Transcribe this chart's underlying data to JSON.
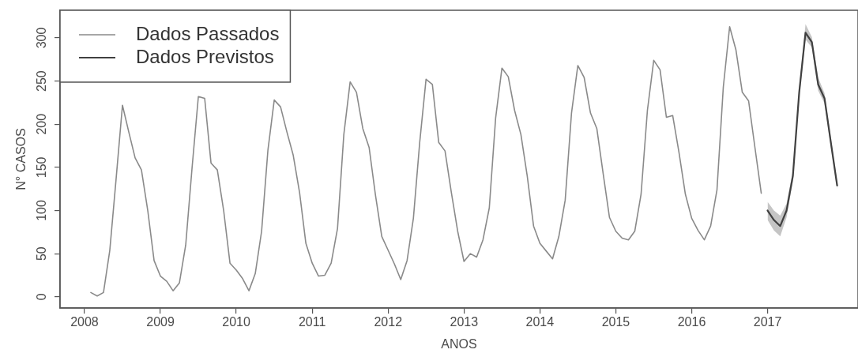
{
  "chart_data": {
    "type": "line",
    "xlabel": "ANOS",
    "ylabel": "N° CASOS",
    "xlim": [
      "2007-09-05",
      "2018-03-10"
    ],
    "ylim": [
      -13,
      332
    ],
    "xticks": [
      "2008",
      "2009",
      "2010",
      "2011",
      "2012",
      "2013",
      "2014",
      "2015",
      "2016",
      "2017"
    ],
    "yticks": [
      0,
      50,
      100,
      150,
      200,
      250,
      300
    ],
    "grid": false,
    "legend": "top left",
    "marker": "none",
    "line_style": "solid",
    "series": [
      {
        "name": "Dados Passados",
        "color": "#8a8a8a",
        "x": [
          "2008-02",
          "2008-03",
          "2008-04",
          "2008-05",
          "2008-06",
          "2008-07",
          "2008-08",
          "2008-09",
          "2008-10",
          "2008-11",
          "2008-12",
          "2009-01",
          "2009-02",
          "2009-03",
          "2009-04",
          "2009-05",
          "2009-06",
          "2009-07",
          "2009-08",
          "2009-09",
          "2009-10",
          "2009-11",
          "2009-12",
          "2010-01",
          "2010-02",
          "2010-03",
          "2010-04",
          "2010-05",
          "2010-06",
          "2010-07",
          "2010-08",
          "2010-09",
          "2010-10",
          "2010-11",
          "2010-12",
          "2011-01",
          "2011-02",
          "2011-03",
          "2011-04",
          "2011-05",
          "2011-06",
          "2011-07",
          "2011-08",
          "2011-09",
          "2011-10",
          "2011-11",
          "2011-12",
          "2012-01",
          "2012-02",
          "2012-03",
          "2012-04",
          "2012-05",
          "2012-06",
          "2012-07",
          "2012-08",
          "2012-09",
          "2012-10",
          "2012-11",
          "2012-12",
          "2013-01",
          "2013-02",
          "2013-03",
          "2013-04",
          "2013-05",
          "2013-06",
          "2013-07",
          "2013-08",
          "2013-09",
          "2013-10",
          "2013-11",
          "2013-12",
          "2014-01",
          "2014-02",
          "2014-03",
          "2014-04",
          "2014-05",
          "2014-06",
          "2014-07",
          "2014-08",
          "2014-09",
          "2014-10",
          "2014-11",
          "2014-12",
          "2015-01",
          "2015-02",
          "2015-03",
          "2015-04",
          "2015-05",
          "2015-06",
          "2015-07",
          "2015-08",
          "2015-09",
          "2015-10",
          "2015-11",
          "2015-12",
          "2016-01",
          "2016-02",
          "2016-03",
          "2016-04",
          "2016-05",
          "2016-06",
          "2016-07",
          "2016-08",
          "2016-09",
          "2016-10",
          "2016-11",
          "2016-12"
        ],
        "values": [
          5,
          1,
          5,
          54,
          137,
          222,
          191,
          161,
          147,
          100,
          42,
          24,
          18,
          7,
          16,
          60,
          149,
          232,
          230,
          155,
          147,
          100,
          39,
          31,
          21,
          7,
          27,
          76,
          170,
          228,
          220,
          191,
          164,
          121,
          62,
          39,
          24,
          25,
          39,
          79,
          188,
          249,
          237,
          195,
          173,
          118,
          70,
          54,
          38,
          20,
          42,
          91,
          179,
          252,
          246,
          179,
          169,
          121,
          76,
          41,
          50,
          46,
          66,
          103,
          207,
          265,
          255,
          216,
          188,
          140,
          82,
          62,
          53,
          44,
          70,
          112,
          213,
          268,
          254,
          213,
          195,
          143,
          92,
          76,
          68,
          66,
          76,
          119,
          216,
          274,
          263,
          208,
          210,
          167,
          119,
          91,
          77,
          66,
          82,
          124,
          243,
          313,
          286,
          237,
          227,
          173,
          120
        ]
      },
      {
        "name": "Dados Previstos",
        "color": "#404040",
        "x": [
          "2017-01",
          "2017-02",
          "2017-03",
          "2017-04",
          "2017-05",
          "2017-06",
          "2017-07",
          "2017-08",
          "2017-09",
          "2017-10",
          "2017-11",
          "2017-12"
        ],
        "values": [
          100,
          89,
          82,
          100,
          140,
          237,
          306,
          295,
          246,
          230,
          179,
          129
        ],
        "lower": [
          89,
          77,
          70,
          92,
          134,
          231,
          298,
          289,
          239,
          224,
          174,
          124
        ],
        "upper": [
          110,
          100,
          94,
          108,
          146,
          243,
          316,
          301,
          254,
          236,
          184,
          134
        ]
      }
    ]
  }
}
